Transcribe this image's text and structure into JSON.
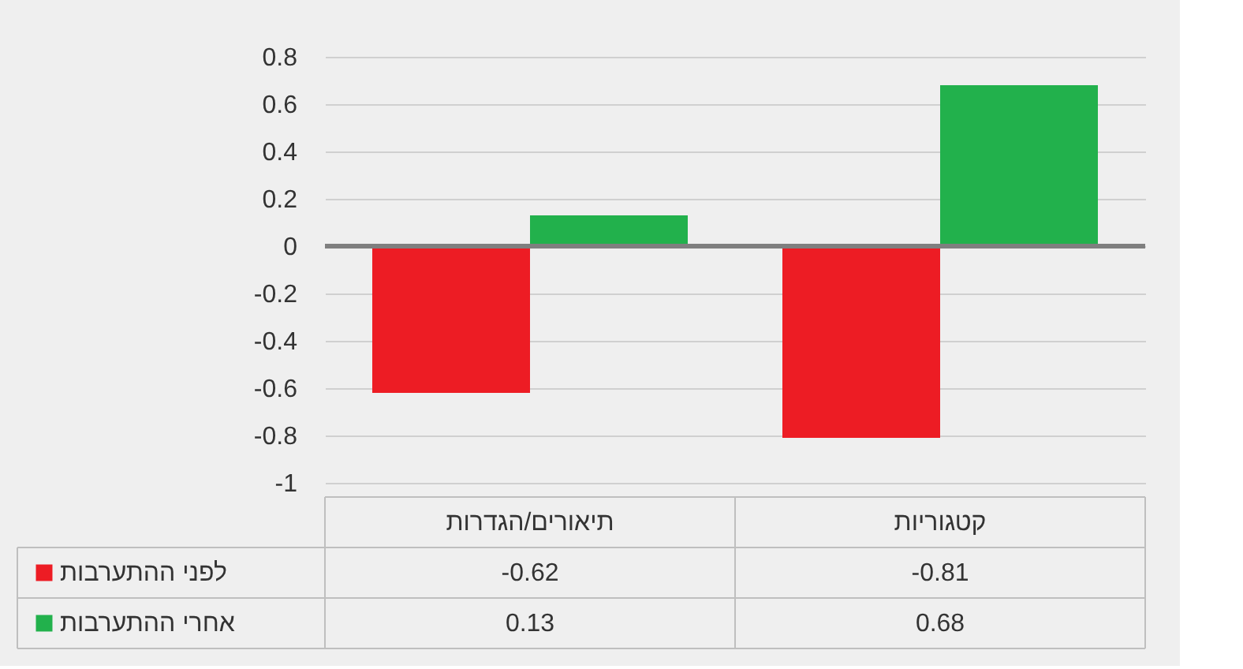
{
  "chart_data": {
    "type": "bar",
    "categories": [
      "תיאורים/הגדרות",
      "קטגוריות"
    ],
    "series": [
      {
        "name": "לפני ההתערבות",
        "color": "#ed1c24",
        "values": [
          -0.62,
          -0.81
        ]
      },
      {
        "name": "אחרי ההתערבות",
        "color": "#22b14c",
        "values": [
          0.13,
          0.68
        ]
      }
    ],
    "ylim": [
      -1,
      0.8
    ],
    "yticks": [
      -1,
      -0.8,
      -0.6,
      -0.4,
      -0.2,
      0,
      0.2,
      0.4,
      0.6,
      0.8
    ],
    "grid": "y",
    "legend": "bottom",
    "data_labels": true
  }
}
